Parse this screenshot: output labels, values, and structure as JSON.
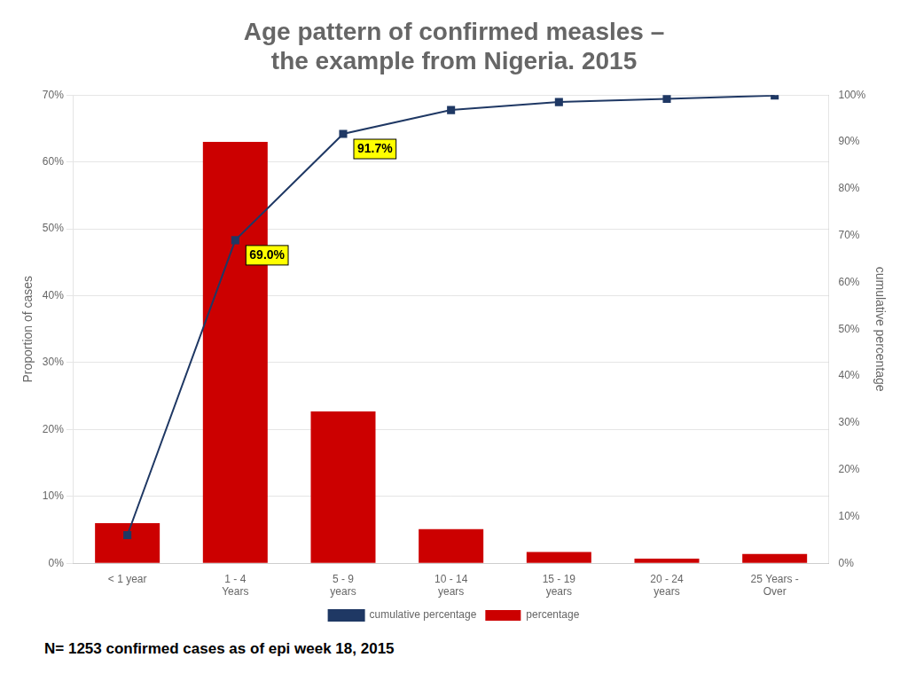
{
  "chart_data": {
    "type": "bar",
    "title": [
      "Age pattern of confirmed measles –",
      "the example from Nigeria. 2015"
    ],
    "footnote": "N= 1253 confirmed cases as of epi week 18, 2015",
    "categories": [
      "< 1 year",
      "1 - 4\nYears",
      "5 - 9\nyears",
      "10 - 14\nyears",
      "15 - 19\nyears",
      "20 - 24\nyears",
      "25 Years -\nOver"
    ],
    "series": [
      {
        "name": "percentage",
        "type": "bar",
        "color": "#CC0000",
        "values": [
          6.0,
          63.0,
          22.7,
          5.1,
          1.7,
          0.7,
          1.4
        ]
      },
      {
        "name": "cumulative percentage",
        "type": "line",
        "axis": "y2",
        "color": "#1F3864",
        "marker": "square",
        "values": [
          6.0,
          69.0,
          91.7,
          96.8,
          98.5,
          99.2,
          99.9
        ]
      }
    ],
    "ylabel": "Proportion of cases",
    "y2label": "cumulative percentage",
    "ylim": [
      0,
      70
    ],
    "yticks": [
      {
        "value": 0,
        "label": "0%"
      },
      {
        "value": 10,
        "label": "10%"
      },
      {
        "value": 20,
        "label": "20%"
      },
      {
        "value": 30,
        "label": "30%"
      },
      {
        "value": 40,
        "label": "40%"
      },
      {
        "value": 50,
        "label": "50%"
      },
      {
        "value": 60,
        "label": "60%"
      },
      {
        "value": 70,
        "label": "70%"
      }
    ],
    "y2lim": [
      0,
      100
    ],
    "y2ticks": [
      {
        "value": 0,
        "label": "0%"
      },
      {
        "value": 10,
        "label": "10%"
      },
      {
        "value": 20,
        "label": "20%"
      },
      {
        "value": 30,
        "label": "30%"
      },
      {
        "value": 40,
        "label": "40%"
      },
      {
        "value": 50,
        "label": "50%"
      },
      {
        "value": 60,
        "label": "60%"
      },
      {
        "value": 70,
        "label": "70%"
      },
      {
        "value": 80,
        "label": "80%"
      },
      {
        "value": 90,
        "label": "90%"
      },
      {
        "value": 100,
        "label": "100%"
      }
    ],
    "annotations": [
      {
        "text": "69.0%",
        "x": "1 - 4\nYears",
        "y": 69.0,
        "axis": "y2"
      },
      {
        "text": "91.7%",
        "x": "5 - 9\nyears",
        "y": 91.7,
        "axis": "y2"
      }
    ],
    "grid": true,
    "legend": "bottom"
  }
}
